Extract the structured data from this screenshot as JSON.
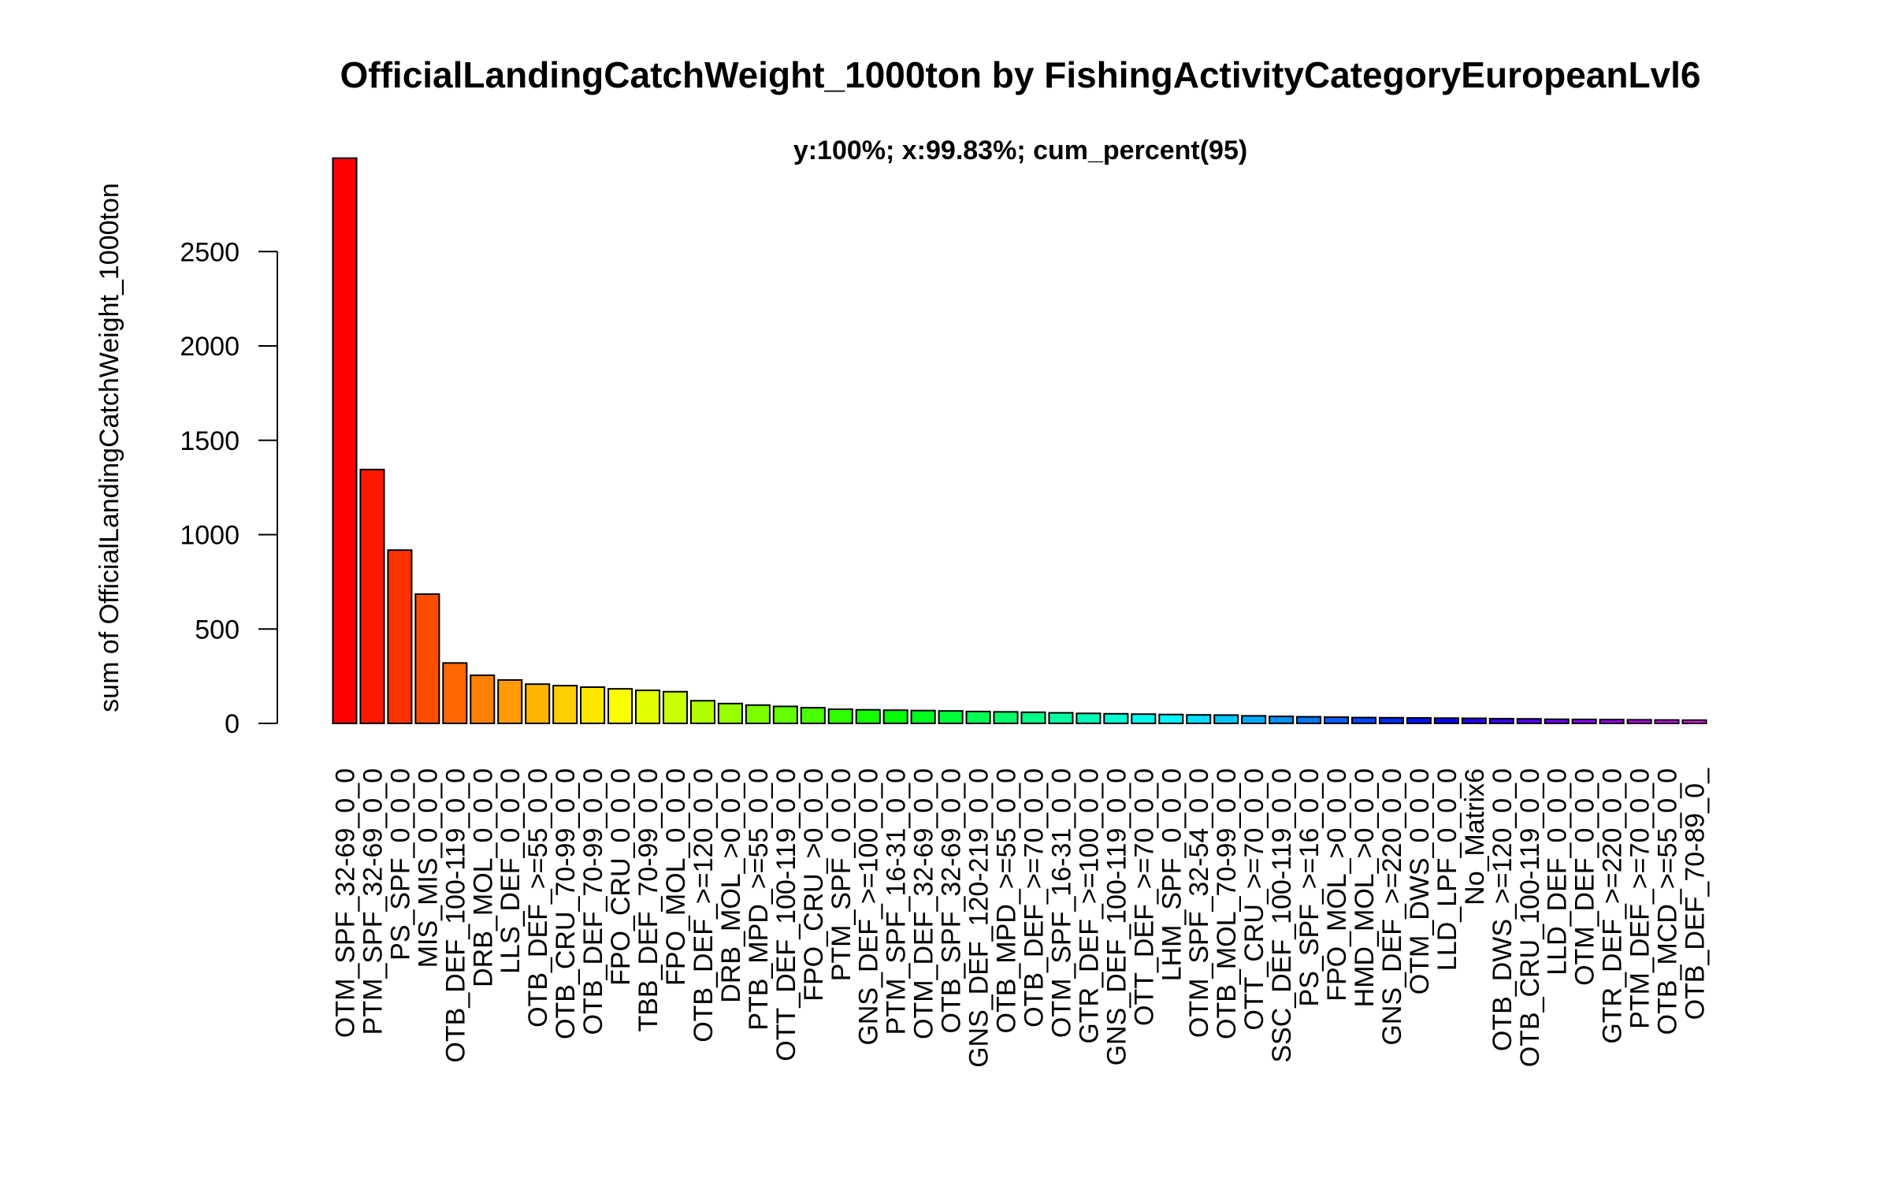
{
  "chart_data": {
    "type": "bar",
    "title": "OfficialLandingCatchWeight_1000ton by FishingActivityCategoryEuropeanLvl6",
    "subtitle": "y:100%; x:99.83%; cum_percent(95)",
    "ylabel": "sum of OfficialLandingCatchWeight_1000ton",
    "xlabel": "",
    "ylim": [
      0,
      3000
    ],
    "yticks": [
      0,
      500,
      1000,
      1500,
      2000,
      2500
    ],
    "ytick_labels": [
      "0",
      "500",
      "1000",
      "1500",
      "2000",
      "2500"
    ],
    "grid": false,
    "legend": "none",
    "color_scheme": "rainbow",
    "categories": [
      "OTM_SPF_32-69_0_0",
      "PTM_SPF_32-69_0_0",
      "PS_SPF_0_0_0",
      "MIS_MIS_0_0_0",
      "OTB_DEF_100-119_0_0",
      "DRB_MOL_0_0_0",
      "LLS_DEF_0_0_0",
      "OTB_DEF_>=55_0_0",
      "OTB_CRU_70-99_0_0",
      "OTB_DEF_70-99_0_0",
      "FPO_CRU_0_0_0",
      "TBB_DEF_70-99_0_0",
      "FPO_MOL_0_0_0",
      "OTB_DEF_>=120_0_0",
      "DRB_MOL_>0_0_0",
      "PTB_MPD_>=55_0_0",
      "OTT_DEF_100-119_0_0",
      "FPO_CRU_>0_0_0",
      "PTM_SPF_0_0_0",
      "GNS_DEF_>=100_0_0",
      "PTM_SPF_16-31_0_0",
      "OTM_DEF_32-69_0_0",
      "OTB_SPF_32-69_0_0",
      "GNS_DEF_120-219_0_0",
      "OTB_MPD_>=55_0_0",
      "OTB_DEF_>=70_0_0",
      "OTM_SPF_16-31_0_0",
      "GTR_DEF_>=100_0_0",
      "GNS_DEF_100-119_0_0",
      "OTT_DEF_>=70_0_0",
      "LHM_SPF_0_0_0",
      "OTM_SPF_32-54_0_0",
      "OTB_MOL_70-99_0_0",
      "OTT_CRU_>=70_0_0",
      "SSC_DEF_100-119_0_0",
      "PS_SPF_>=16_0_0",
      "FPO_MOL_>0_0_0",
      "HMD_MOL_>0_0_0",
      "GNS_DEF_>=220_0_0",
      "OTM_DWS_0_0_0",
      "LLD_LPF_0_0_0",
      "No_Matrix6",
      "OTB_DWS_>=120_0_0",
      "OTB_CRU_100-119_0_0",
      "LLD_DEF_0_0_0",
      "OTM_DEF_0_0_0",
      "GTR_DEF_>=220_0_0",
      "PTM_DEF_>=70_0_0",
      "OTB_MCD_>=55_0_0",
      "OTB_DEF_70-89_0_"
    ],
    "values": [
      2995,
      1345,
      918,
      685,
      320,
      255,
      230,
      208,
      200,
      192,
      183,
      175,
      168,
      120,
      105,
      97,
      90,
      83,
      75,
      72,
      70,
      68,
      66,
      63,
      61,
      59,
      56,
      53,
      51,
      49,
      47,
      45,
      44,
      40,
      37,
      35,
      33,
      31,
      30,
      29,
      28,
      27,
      25,
      24,
      22,
      21,
      20,
      19,
      18,
      17
    ]
  }
}
